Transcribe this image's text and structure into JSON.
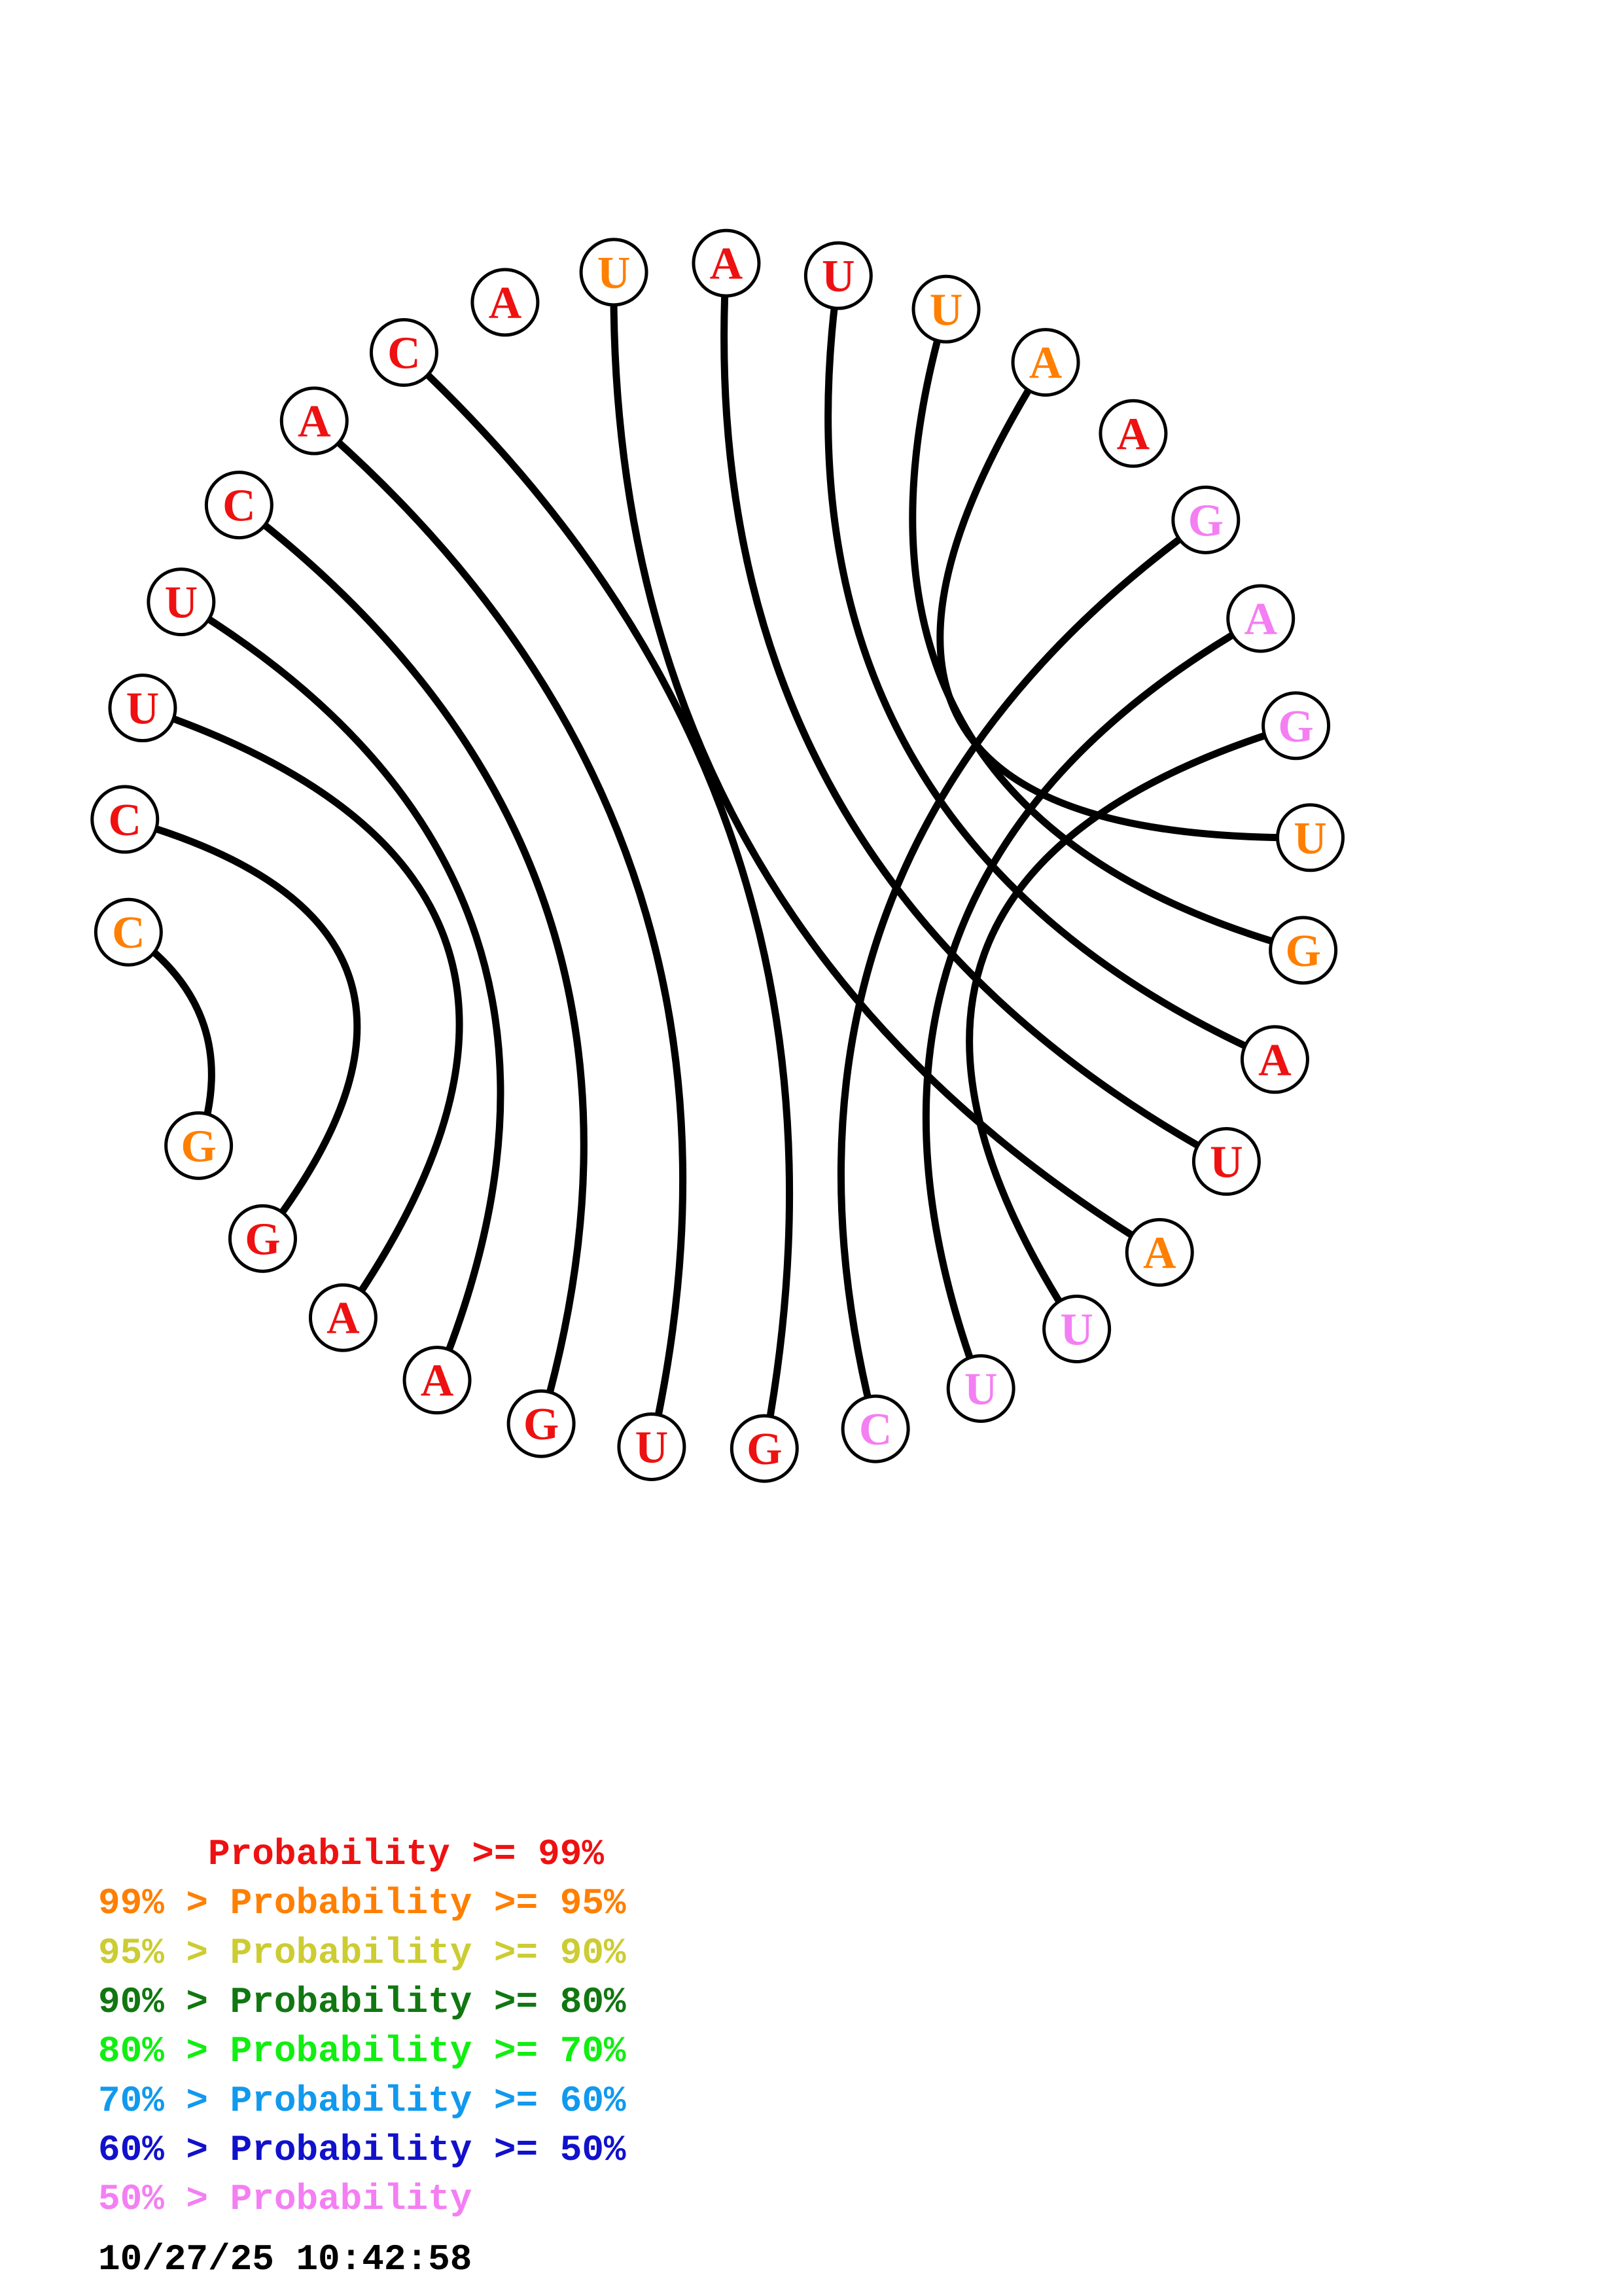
{
  "structure": {
    "nucleotides": [
      {
        "base": "C",
        "color": "#ff7f00"
      },
      {
        "base": "C",
        "color": "#ee1111"
      },
      {
        "base": "U",
        "color": "#ee1111"
      },
      {
        "base": "U",
        "color": "#ee1111"
      },
      {
        "base": "C",
        "color": "#ee1111"
      },
      {
        "base": "A",
        "color": "#ee1111"
      },
      {
        "base": "C",
        "color": "#ee1111"
      },
      {
        "base": "A",
        "color": "#ee1111"
      },
      {
        "base": "U",
        "color": "#ff7f00"
      },
      {
        "base": "A",
        "color": "#ee1111"
      },
      {
        "base": "U",
        "color": "#ee1111"
      },
      {
        "base": "U",
        "color": "#ff7f00"
      },
      {
        "base": "A",
        "color": "#ff7f00"
      },
      {
        "base": "A",
        "color": "#ee1111"
      },
      {
        "base": "G",
        "color": "#f37ff3"
      },
      {
        "base": "A",
        "color": "#f37ff3"
      },
      {
        "base": "G",
        "color": "#f37ff3"
      },
      {
        "base": "U",
        "color": "#ff7f00"
      },
      {
        "base": "G",
        "color": "#ff7f00"
      },
      {
        "base": "A",
        "color": "#ee1111"
      },
      {
        "base": "U",
        "color": "#ee1111"
      },
      {
        "base": "A",
        "color": "#ff7f00"
      },
      {
        "base": "U",
        "color": "#f37ff3"
      },
      {
        "base": "U",
        "color": "#f37ff3"
      },
      {
        "base": "C",
        "color": "#f37ff3"
      },
      {
        "base": "G",
        "color": "#ee1111"
      },
      {
        "base": "U",
        "color": "#ee1111"
      },
      {
        "base": "G",
        "color": "#ee1111"
      },
      {
        "base": "A",
        "color": "#ee1111"
      },
      {
        "base": "A",
        "color": "#ee1111"
      },
      {
        "base": "G",
        "color": "#ee1111"
      },
      {
        "base": "G",
        "color": "#ff7f00"
      }
    ],
    "pairs": [
      [
        1,
        32
      ],
      [
        2,
        31
      ],
      [
        3,
        30
      ],
      [
        4,
        29
      ],
      [
        5,
        28
      ],
      [
        6,
        27
      ],
      [
        7,
        26
      ],
      [
        9,
        22
      ],
      [
        10,
        21
      ],
      [
        11,
        20
      ],
      [
        12,
        19
      ],
      [
        13,
        18
      ],
      [
        15,
        25
      ],
      [
        16,
        24
      ],
      [
        17,
        23
      ]
    ]
  },
  "legend": [
    {
      "text": "     Probability >= 99%",
      "color": "#ee1111"
    },
    {
      "text": "99% > Probability >= 95%",
      "color": "#ff7f00"
    },
    {
      "text": "95% > Probability >= 90%",
      "color": "#cccc33"
    },
    {
      "text": "90% > Probability >= 80%",
      "color": "#117711"
    },
    {
      "text": "80% > Probability >= 70%",
      "color": "#11ee11"
    },
    {
      "text": "70% > Probability >= 60%",
      "color": "#1199ee"
    },
    {
      "text": "60% > Probability >= 50%",
      "color": "#1111cc"
    },
    {
      "text": "50% > Probability",
      "color": "#f37ff3"
    }
  ],
  "timestamp": "10/27/25 10:42:58"
}
